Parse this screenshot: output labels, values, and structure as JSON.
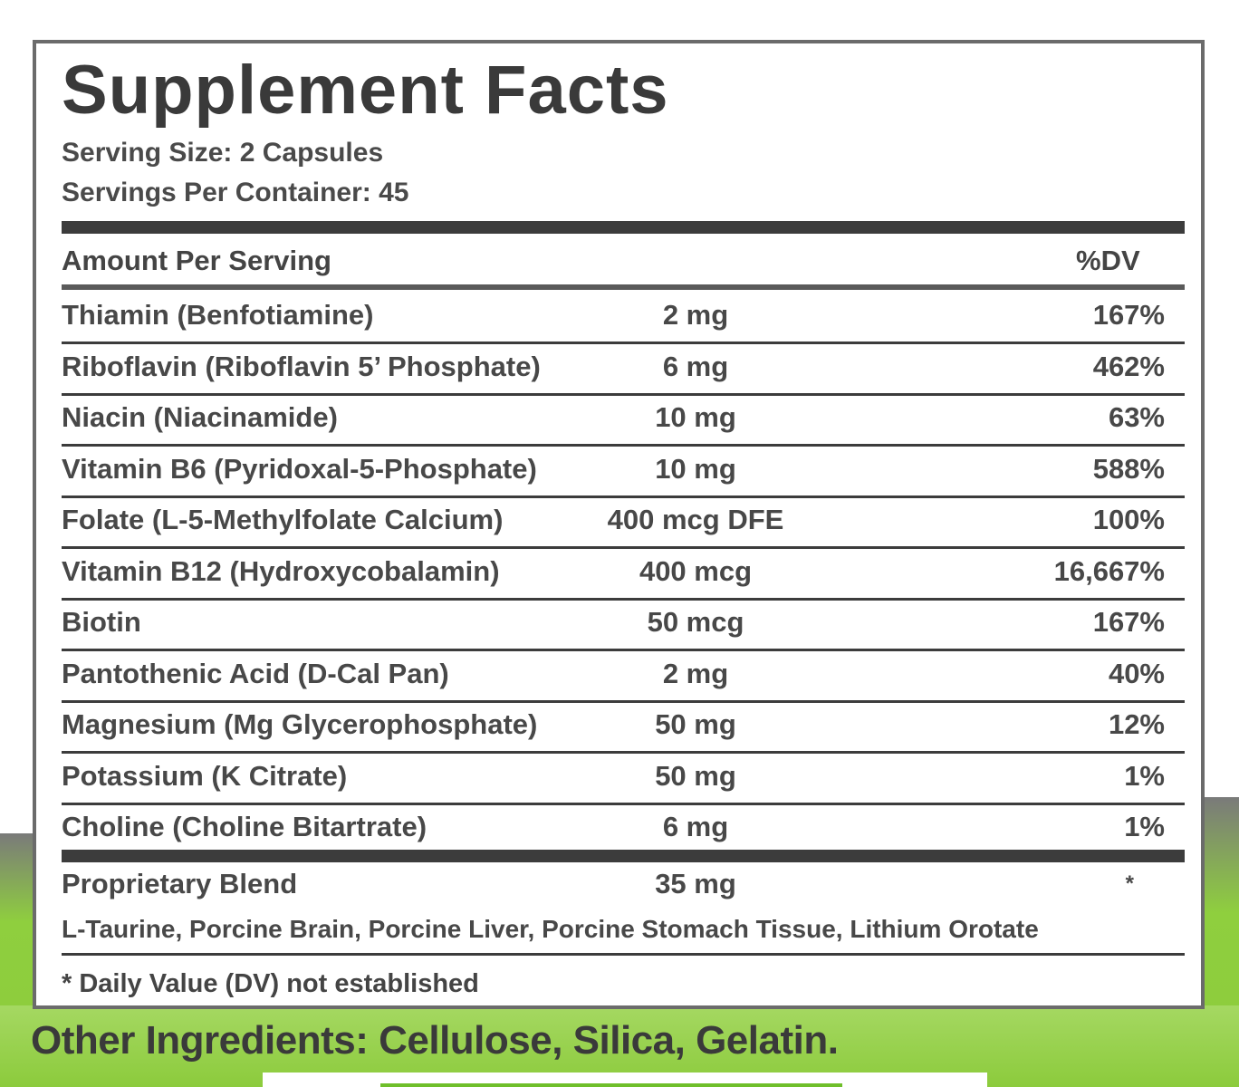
{
  "title": "Supplement Facts",
  "serving_size": "Serving Size: 2 Capsules",
  "servings_per_container": "Servings Per Container: 45",
  "header": {
    "amount_per_serving": "Amount Per Serving",
    "dv": "%DV"
  },
  "nutrients": [
    {
      "name": "Thiamin (Benfotiamine)",
      "amount": "2 mg",
      "dv": "167%"
    },
    {
      "name": "Riboflavin (Riboflavin 5’ Phosphate)",
      "amount": "6 mg",
      "dv": "462%"
    },
    {
      "name": "Niacin (Niacinamide)",
      "amount": "10 mg",
      "dv": "63%"
    },
    {
      "name": "Vitamin B6 (Pyridoxal-5-Phosphate)",
      "amount": "10 mg",
      "dv": "588%"
    },
    {
      "name": "Folate (L-5-Methylfolate Calcium)",
      "amount": "400 mcg DFE",
      "dv": "100%"
    },
    {
      "name": "Vitamin B12 (Hydroxycobalamin)",
      "amount": "400 mcg",
      "dv": "16,667%"
    },
    {
      "name": "Biotin",
      "amount": "50 mcg",
      "dv": "167%"
    },
    {
      "name": "Pantothenic Acid (D-Cal Pan)",
      "amount": "2 mg",
      "dv": "40%"
    },
    {
      "name": "Magnesium (Mg Glycerophosphate)",
      "amount": "50 mg",
      "dv": "12%"
    },
    {
      "name": "Potassium (K Citrate)",
      "amount": "50 mg",
      "dv": "1%"
    },
    {
      "name": "Choline (Choline Bitartrate)",
      "amount": "6 mg",
      "dv": "1%"
    }
  ],
  "proprietary_blend": {
    "name": "Proprietary Blend",
    "amount": "35 mg",
    "dv": "*",
    "ingredients": "L-Taurine, Porcine Brain, Porcine Liver, Porcine Stomach Tissue, Lithium Orotate"
  },
  "footnote": "* Daily Value (DV) not established",
  "other_ingredients": "Other Ingredients: Cellulose, Silica, Gelatin.",
  "colors": {
    "background_green": "#8ccb3c",
    "text": "#3f3f3f",
    "border": "#6b6b6b"
  }
}
